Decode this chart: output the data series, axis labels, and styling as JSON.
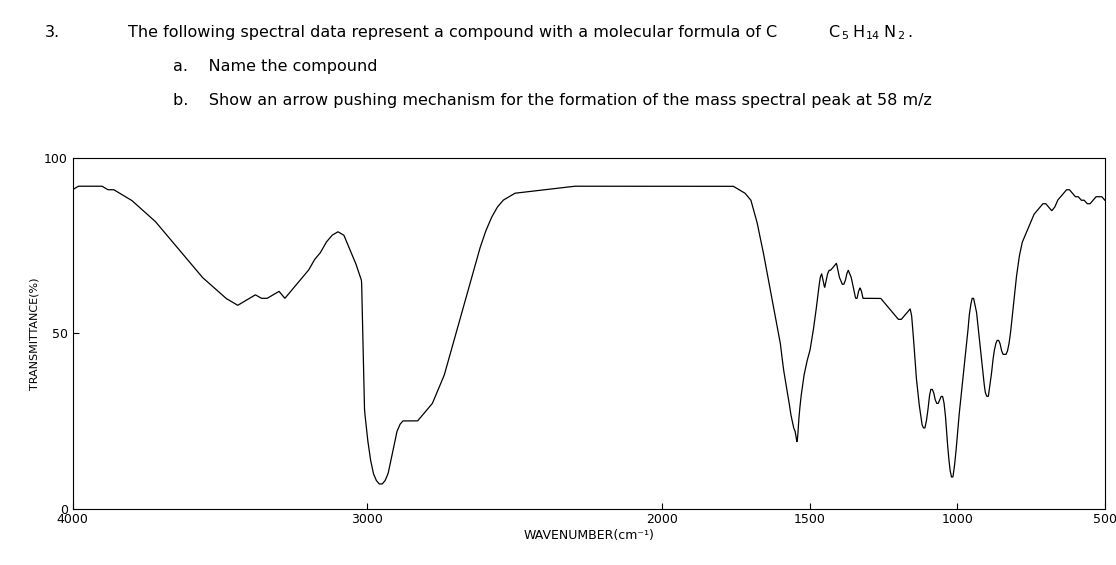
{
  "question_num": "3.",
  "line1_pre": "The following spectral data represent a compound with a molecular formula of C",
  "sub1": "5",
  "text_H": "H",
  "sub2": "14",
  "text_N": "N",
  "sub3": "2",
  "text_dot": ".",
  "item_a_label": "a.",
  "item_a_text": "Name the compound",
  "item_b_label": "b.",
  "item_b_text": "Show an arrow pushing mechanism for the formation of the mass spectral peak at 58 m/z",
  "xlabel": "WAVENUMBER(cm⁻¹)",
  "ylabel": "TRANSMITTANCE(%)",
  "xlim_left": 4000,
  "xlim_right": 500,
  "ylim_bottom": 0,
  "ylim_top": 100,
  "ytick_values": [
    0,
    50,
    100
  ],
  "ytick_labels": [
    "0",
    "50",
    "100"
  ],
  "xtick_values": [
    4000,
    3000,
    2000,
    1500,
    1000,
    500
  ],
  "xtick_labels": [
    "4000",
    "3000",
    "2000",
    "1500",
    "1000",
    "500"
  ],
  "line_color": "#000000",
  "bg_color": "#ffffff",
  "ir_points": [
    [
      4000,
      91
    ],
    [
      3980,
      92
    ],
    [
      3960,
      92
    ],
    [
      3940,
      92
    ],
    [
      3920,
      92
    ],
    [
      3900,
      92
    ],
    [
      3880,
      91
    ],
    [
      3860,
      91
    ],
    [
      3840,
      90
    ],
    [
      3800,
      88
    ],
    [
      3760,
      85
    ],
    [
      3720,
      82
    ],
    [
      3680,
      78
    ],
    [
      3640,
      74
    ],
    [
      3600,
      70
    ],
    [
      3560,
      66
    ],
    [
      3520,
      63
    ],
    [
      3480,
      60
    ],
    [
      3460,
      59
    ],
    [
      3440,
      58
    ],
    [
      3420,
      59
    ],
    [
      3400,
      60
    ],
    [
      3380,
      61
    ],
    [
      3360,
      60
    ],
    [
      3340,
      60
    ],
    [
      3320,
      61
    ],
    [
      3300,
      62
    ],
    [
      3280,
      60
    ],
    [
      3260,
      62
    ],
    [
      3240,
      64
    ],
    [
      3220,
      66
    ],
    [
      3200,
      68
    ],
    [
      3180,
      71
    ],
    [
      3160,
      73
    ],
    [
      3140,
      76
    ],
    [
      3120,
      78
    ],
    [
      3100,
      79
    ],
    [
      3080,
      78
    ],
    [
      3060,
      74
    ],
    [
      3040,
      70
    ],
    [
      3020,
      65
    ],
    [
      3010,
      28
    ],
    [
      3000,
      20
    ],
    [
      2990,
      14
    ],
    [
      2980,
      10
    ],
    [
      2970,
      8
    ],
    [
      2960,
      7
    ],
    [
      2950,
      7
    ],
    [
      2940,
      8
    ],
    [
      2930,
      10
    ],
    [
      2920,
      14
    ],
    [
      2910,
      18
    ],
    [
      2900,
      22
    ],
    [
      2890,
      24
    ],
    [
      2880,
      25
    ],
    [
      2870,
      25
    ],
    [
      2860,
      25
    ],
    [
      2850,
      25
    ],
    [
      2840,
      25
    ],
    [
      2830,
      25
    ],
    [
      2820,
      26
    ],
    [
      2800,
      28
    ],
    [
      2780,
      30
    ],
    [
      2760,
      34
    ],
    [
      2740,
      38
    ],
    [
      2720,
      44
    ],
    [
      2700,
      50
    ],
    [
      2680,
      56
    ],
    [
      2660,
      62
    ],
    [
      2640,
      68
    ],
    [
      2620,
      74
    ],
    [
      2600,
      79
    ],
    [
      2580,
      83
    ],
    [
      2560,
      86
    ],
    [
      2540,
      88
    ],
    [
      2520,
      89
    ],
    [
      2500,
      90
    ],
    [
      2400,
      91
    ],
    [
      2300,
      92
    ],
    [
      2200,
      92
    ],
    [
      2100,
      92
    ],
    [
      2000,
      92
    ],
    [
      1980,
      92
    ],
    [
      1960,
      92
    ],
    [
      1940,
      92
    ],
    [
      1920,
      92
    ],
    [
      1900,
      92
    ],
    [
      1880,
      92
    ],
    [
      1860,
      92
    ],
    [
      1840,
      92
    ],
    [
      1820,
      92
    ],
    [
      1800,
      92
    ],
    [
      1780,
      92
    ],
    [
      1760,
      92
    ],
    [
      1740,
      91
    ],
    [
      1720,
      90
    ],
    [
      1700,
      88
    ],
    [
      1680,
      82
    ],
    [
      1660,
      74
    ],
    [
      1640,
      65
    ],
    [
      1620,
      56
    ],
    [
      1600,
      47
    ],
    [
      1590,
      40
    ],
    [
      1580,
      35
    ],
    [
      1570,
      30
    ],
    [
      1565,
      27
    ],
    [
      1560,
      25
    ],
    [
      1555,
      23
    ],
    [
      1550,
      22
    ],
    [
      1548,
      21
    ],
    [
      1546,
      20
    ],
    [
      1544,
      19
    ],
    [
      1542,
      20
    ],
    [
      1540,
      22
    ],
    [
      1538,
      25
    ],
    [
      1535,
      28
    ],
    [
      1530,
      32
    ],
    [
      1525,
      35
    ],
    [
      1520,
      38
    ],
    [
      1515,
      40
    ],
    [
      1510,
      42
    ],
    [
      1500,
      45
    ],
    [
      1490,
      50
    ],
    [
      1480,
      56
    ],
    [
      1470,
      63
    ],
    [
      1465,
      66
    ],
    [
      1460,
      67
    ],
    [
      1455,
      65
    ],
    [
      1450,
      63
    ],
    [
      1445,
      65
    ],
    [
      1440,
      67
    ],
    [
      1435,
      68
    ],
    [
      1430,
      68
    ],
    [
      1420,
      69
    ],
    [
      1410,
      70
    ],
    [
      1405,
      68
    ],
    [
      1400,
      66
    ],
    [
      1395,
      65
    ],
    [
      1390,
      64
    ],
    [
      1385,
      64
    ],
    [
      1380,
      65
    ],
    [
      1375,
      67
    ],
    [
      1370,
      68
    ],
    [
      1365,
      67
    ],
    [
      1360,
      66
    ],
    [
      1355,
      64
    ],
    [
      1350,
      62
    ],
    [
      1345,
      60
    ],
    [
      1340,
      60
    ],
    [
      1335,
      62
    ],
    [
      1330,
      63
    ],
    [
      1325,
      62
    ],
    [
      1320,
      60
    ],
    [
      1315,
      60
    ],
    [
      1310,
      60
    ],
    [
      1305,
      60
    ],
    [
      1300,
      60
    ],
    [
      1290,
      60
    ],
    [
      1280,
      60
    ],
    [
      1270,
      60
    ],
    [
      1260,
      60
    ],
    [
      1250,
      59
    ],
    [
      1240,
      58
    ],
    [
      1230,
      57
    ],
    [
      1220,
      56
    ],
    [
      1210,
      55
    ],
    [
      1200,
      54
    ],
    [
      1190,
      54
    ],
    [
      1180,
      55
    ],
    [
      1170,
      56
    ],
    [
      1160,
      57
    ],
    [
      1155,
      55
    ],
    [
      1150,
      50
    ],
    [
      1145,
      44
    ],
    [
      1140,
      38
    ],
    [
      1135,
      34
    ],
    [
      1130,
      30
    ],
    [
      1125,
      27
    ],
    [
      1120,
      24
    ],
    [
      1115,
      23
    ],
    [
      1110,
      23
    ],
    [
      1105,
      25
    ],
    [
      1100,
      28
    ],
    [
      1095,
      32
    ],
    [
      1090,
      34
    ],
    [
      1085,
      34
    ],
    [
      1080,
      33
    ],
    [
      1075,
      31
    ],
    [
      1070,
      30
    ],
    [
      1065,
      30
    ],
    [
      1060,
      31
    ],
    [
      1055,
      32
    ],
    [
      1050,
      32
    ],
    [
      1045,
      30
    ],
    [
      1040,
      26
    ],
    [
      1035,
      20
    ],
    [
      1030,
      15
    ],
    [
      1025,
      11
    ],
    [
      1020,
      9
    ],
    [
      1015,
      9
    ],
    [
      1010,
      12
    ],
    [
      1005,
      16
    ],
    [
      1000,
      21
    ],
    [
      995,
      26
    ],
    [
      990,
      30
    ],
    [
      985,
      34
    ],
    [
      980,
      38
    ],
    [
      975,
      42
    ],
    [
      970,
      46
    ],
    [
      965,
      50
    ],
    [
      960,
      55
    ],
    [
      955,
      58
    ],
    [
      950,
      60
    ],
    [
      945,
      60
    ],
    [
      940,
      58
    ],
    [
      935,
      56
    ],
    [
      930,
      52
    ],
    [
      925,
      48
    ],
    [
      920,
      44
    ],
    [
      915,
      40
    ],
    [
      910,
      36
    ],
    [
      905,
      33
    ],
    [
      900,
      32
    ],
    [
      895,
      32
    ],
    [
      890,
      35
    ],
    [
      885,
      38
    ],
    [
      880,
      42
    ],
    [
      875,
      45
    ],
    [
      870,
      47
    ],
    [
      865,
      48
    ],
    [
      860,
      48
    ],
    [
      855,
      47
    ],
    [
      850,
      45
    ],
    [
      845,
      44
    ],
    [
      840,
      44
    ],
    [
      835,
      44
    ],
    [
      830,
      45
    ],
    [
      825,
      47
    ],
    [
      820,
      50
    ],
    [
      815,
      54
    ],
    [
      810,
      58
    ],
    [
      805,
      62
    ],
    [
      800,
      66
    ],
    [
      790,
      72
    ],
    [
      780,
      76
    ],
    [
      770,
      78
    ],
    [
      760,
      80
    ],
    [
      750,
      82
    ],
    [
      740,
      84
    ],
    [
      730,
      85
    ],
    [
      720,
      86
    ],
    [
      710,
      87
    ],
    [
      700,
      87
    ],
    [
      690,
      86
    ],
    [
      680,
      85
    ],
    [
      670,
      86
    ],
    [
      660,
      88
    ],
    [
      650,
      89
    ],
    [
      640,
      90
    ],
    [
      630,
      91
    ],
    [
      620,
      91
    ],
    [
      610,
      90
    ],
    [
      600,
      89
    ],
    [
      590,
      89
    ],
    [
      580,
      88
    ],
    [
      570,
      88
    ],
    [
      560,
      87
    ],
    [
      550,
      87
    ],
    [
      540,
      88
    ],
    [
      530,
      89
    ],
    [
      520,
      89
    ],
    [
      510,
      89
    ],
    [
      500,
      88
    ]
  ]
}
